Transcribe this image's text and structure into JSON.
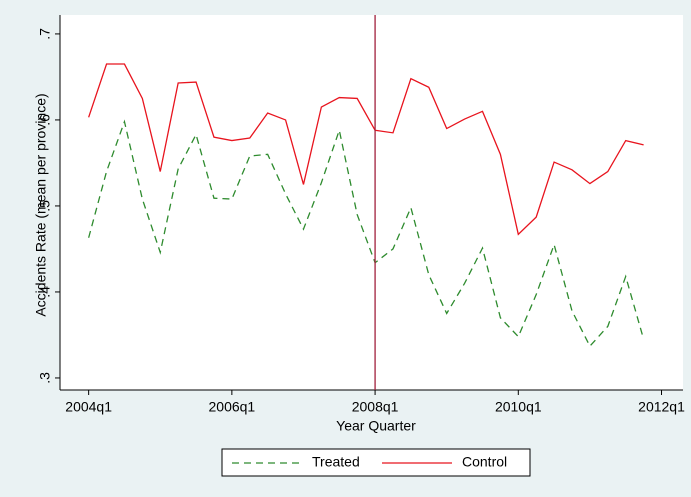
{
  "chart_data": {
    "type": "line",
    "x_label": "Year Quarter",
    "y_label": "Accidents Rate (mean per province)",
    "x": [
      176,
      177,
      178,
      179,
      180,
      181,
      182,
      183,
      184,
      185,
      186,
      187,
      188,
      189,
      190,
      191,
      192,
      193,
      194,
      195,
      196,
      197,
      198,
      199,
      200,
      201,
      202,
      203,
      204,
      205,
      206,
      207
    ],
    "series": [
      {
        "name": "Treated",
        "color": "#2e8b2e",
        "dash": true,
        "values": [
          0.463,
          0.54,
          0.598,
          0.508,
          0.446,
          0.543,
          0.583,
          0.509,
          0.508,
          0.558,
          0.56,
          0.514,
          0.473,
          0.527,
          0.588,
          0.49,
          0.434,
          0.45,
          0.498,
          0.42,
          0.375,
          0.41,
          0.451,
          0.37,
          0.348,
          0.397,
          0.455,
          0.378,
          0.337,
          0.36,
          0.418,
          0.345
        ]
      },
      {
        "name": "Control",
        "color": "#e8141e",
        "dash": false,
        "values": [
          0.603,
          0.665,
          0.665,
          0.625,
          0.54,
          0.643,
          0.644,
          0.58,
          0.576,
          0.579,
          0.608,
          0.6,
          0.525,
          0.615,
          0.626,
          0.625,
          0.588,
          0.585,
          0.648,
          0.638,
          0.59,
          0.601,
          0.61,
          0.56,
          0.467,
          0.487,
          0.551,
          0.542,
          0.526,
          0.54,
          0.576,
          0.571
        ]
      }
    ],
    "xline": 192,
    "xline_color": "#a0203c",
    "xlim": [
      174.4,
      209.2
    ],
    "xticks": [
      {
        "value": 176,
        "label": "2004q1"
      },
      {
        "value": 184,
        "label": "2006q1"
      },
      {
        "value": 192,
        "label": "2008q1"
      },
      {
        "value": 200,
        "label": "2010q1"
      },
      {
        "value": 208,
        "label": "2012q1"
      }
    ],
    "ylim": [
      0.286,
      0.722
    ],
    "yticks": [
      {
        "value": 0.3,
        "label": ".3"
      },
      {
        "value": 0.4,
        "label": ".4"
      },
      {
        "value": 0.5,
        "label": ".5"
      },
      {
        "value": 0.6,
        "label": ".6"
      },
      {
        "value": 0.7,
        "label": ".7"
      }
    ],
    "grid": false,
    "legend": "bottom"
  }
}
